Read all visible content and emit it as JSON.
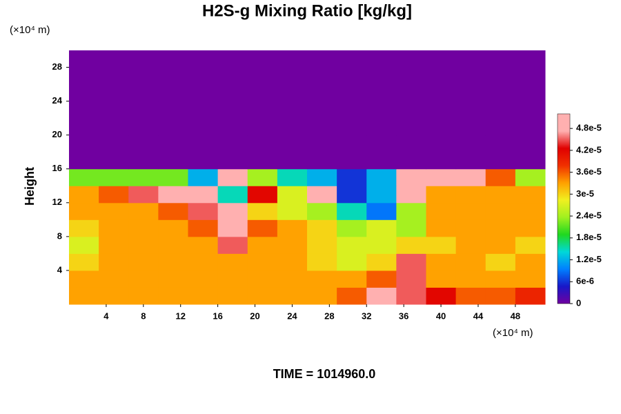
{
  "chart_data": {
    "type": "heatmap",
    "title": "H2S-g Mixing Ratio [kg/kg]",
    "ylabel": "Height",
    "y_unit": "(×10⁴ m)",
    "x_unit": "(×10⁴ m)",
    "footer": "TIME = 1014960.0",
    "x": [
      1.6,
      4.8,
      8.0,
      11.2,
      14.4,
      17.6,
      20.8,
      24.0,
      27.2,
      30.4,
      33.6,
      36.8,
      40.0,
      43.2,
      46.4,
      49.6
    ],
    "y": [
      1,
      3,
      5,
      7,
      9,
      11,
      13,
      15,
      17,
      19,
      21,
      23,
      25,
      27,
      29
    ],
    "z": [
      [
        3.3e-05,
        3.3e-05,
        3.3e-05,
        3.3e-05,
        3.3e-05,
        3.3e-05,
        3.3e-05,
        3.3e-05,
        3.3e-05,
        3.6e-05,
        4.8e-05,
        4.5e-05,
        4.2e-05,
        3.6e-05,
        3.6e-05,
        3.9e-05
      ],
      [
        3.3e-05,
        3.3e-05,
        3.3e-05,
        3.3e-05,
        3.3e-05,
        3.3e-05,
        3.3e-05,
        3.3e-05,
        3.3e-05,
        3.3e-05,
        3.6e-05,
        4.5e-05,
        3.3e-05,
        3.3e-05,
        3.3e-05,
        3.3e-05
      ],
      [
        3e-05,
        3.3e-05,
        3.3e-05,
        3.3e-05,
        3.3e-05,
        3.3e-05,
        3.3e-05,
        3.3e-05,
        3e-05,
        2.7e-05,
        3e-05,
        4.5e-05,
        3.3e-05,
        3.3e-05,
        3e-05,
        3.3e-05
      ],
      [
        2.7e-05,
        3.3e-05,
        3.3e-05,
        3.3e-05,
        3.3e-05,
        4.5e-05,
        3.3e-05,
        3.3e-05,
        3e-05,
        2.7e-05,
        2.7e-05,
        3e-05,
        3e-05,
        3.3e-05,
        3.3e-05,
        3e-05
      ],
      [
        3e-05,
        3.3e-05,
        3.3e-05,
        3.3e-05,
        3.6e-05,
        5.1e-05,
        3.6e-05,
        3.3e-05,
        3e-05,
        2.4e-05,
        2.7e-05,
        2.4e-05,
        3.3e-05,
        3.3e-05,
        3.3e-05,
        3.3e-05
      ],
      [
        3.3e-05,
        3.3e-05,
        3.3e-05,
        3.6e-05,
        4.5e-05,
        5e-05,
        3e-05,
        2.7e-05,
        2.4e-05,
        1.5e-05,
        9e-06,
        2.4e-05,
        3.3e-05,
        3.3e-05,
        3.3e-05,
        3.3e-05
      ],
      [
        3.3e-05,
        3.6e-05,
        4.5e-05,
        5.1e-05,
        4.8e-05,
        1.5e-05,
        4.2e-05,
        2.7e-05,
        4.8e-05,
        6e-06,
        1.2e-05,
        4.8e-05,
        3.3e-05,
        3.3e-05,
        3.3e-05,
        3.3e-05
      ],
      [
        2.2e-05,
        2.2e-05,
        2.2e-05,
        2.2e-05,
        1.2e-05,
        5.1e-05,
        2.4e-05,
        1.5e-05,
        1.2e-05,
        6e-06,
        1.2e-05,
        5.1e-05,
        5.1e-05,
        5.1e-05,
        3.6e-05,
        2.4e-05
      ],
      [
        0,
        0,
        0,
        0,
        0,
        0,
        0,
        0,
        0,
        0,
        0,
        0,
        0,
        0,
        0,
        0
      ],
      [
        0,
        0,
        0,
        0,
        0,
        0,
        0,
        0,
        0,
        0,
        0,
        0,
        0,
        0,
        0,
        0
      ],
      [
        0,
        0,
        0,
        0,
        0,
        0,
        0,
        0,
        0,
        0,
        0,
        0,
        0,
        0,
        0,
        0
      ],
      [
        0,
        0,
        0,
        0,
        0,
        0,
        0,
        0,
        0,
        0,
        0,
        0,
        0,
        0,
        0,
        0
      ],
      [
        0,
        0,
        0,
        0,
        0,
        0,
        0,
        0,
        0,
        0,
        0,
        0,
        0,
        0,
        0,
        0
      ],
      [
        0,
        0,
        0,
        0,
        0,
        0,
        0,
        0,
        0,
        0,
        0,
        0,
        0,
        0,
        0,
        0
      ],
      [
        0,
        0,
        0,
        0,
        0,
        0,
        0,
        0,
        0,
        0,
        0,
        0,
        0,
        0,
        0,
        0
      ]
    ],
    "xlim": [
      0,
      51.2
    ],
    "ylim": [
      0,
      30
    ],
    "xticks": [
      4,
      8,
      12,
      16,
      20,
      24,
      28,
      32,
      36,
      40,
      44,
      48
    ],
    "yticks": [
      4,
      8,
      12,
      16,
      20,
      24,
      28
    ],
    "colorbar": {
      "range": [
        0,
        5.2e-05
      ],
      "ticks": [
        0,
        {
          "value": 6e-06,
          "label": "6e-6"
        },
        {
          "value": 1.2e-05,
          "label": "1.2e-5"
        },
        {
          "value": 1.8e-05,
          "label": "1.8e-5"
        },
        {
          "value": 2.4e-05,
          "label": "2.4e-5"
        },
        {
          "value": 3e-05,
          "label": "3e-5"
        },
        {
          "value": 3.6e-05,
          "label": "3.6e-5"
        },
        {
          "value": 4.2e-05,
          "label": "4.2e-5"
        },
        {
          "value": 4.8e-05,
          "label": "4.8e-5"
        }
      ],
      "colormap": [
        "#7000a0",
        "#1818c8",
        "#0080ff",
        "#00d8d8",
        "#20d820",
        "#a0f020",
        "#f0f020",
        "#ffa000",
        "#f03000",
        "#e00000",
        "#ffb0b0",
        "#ffb0b0"
      ]
    }
  }
}
